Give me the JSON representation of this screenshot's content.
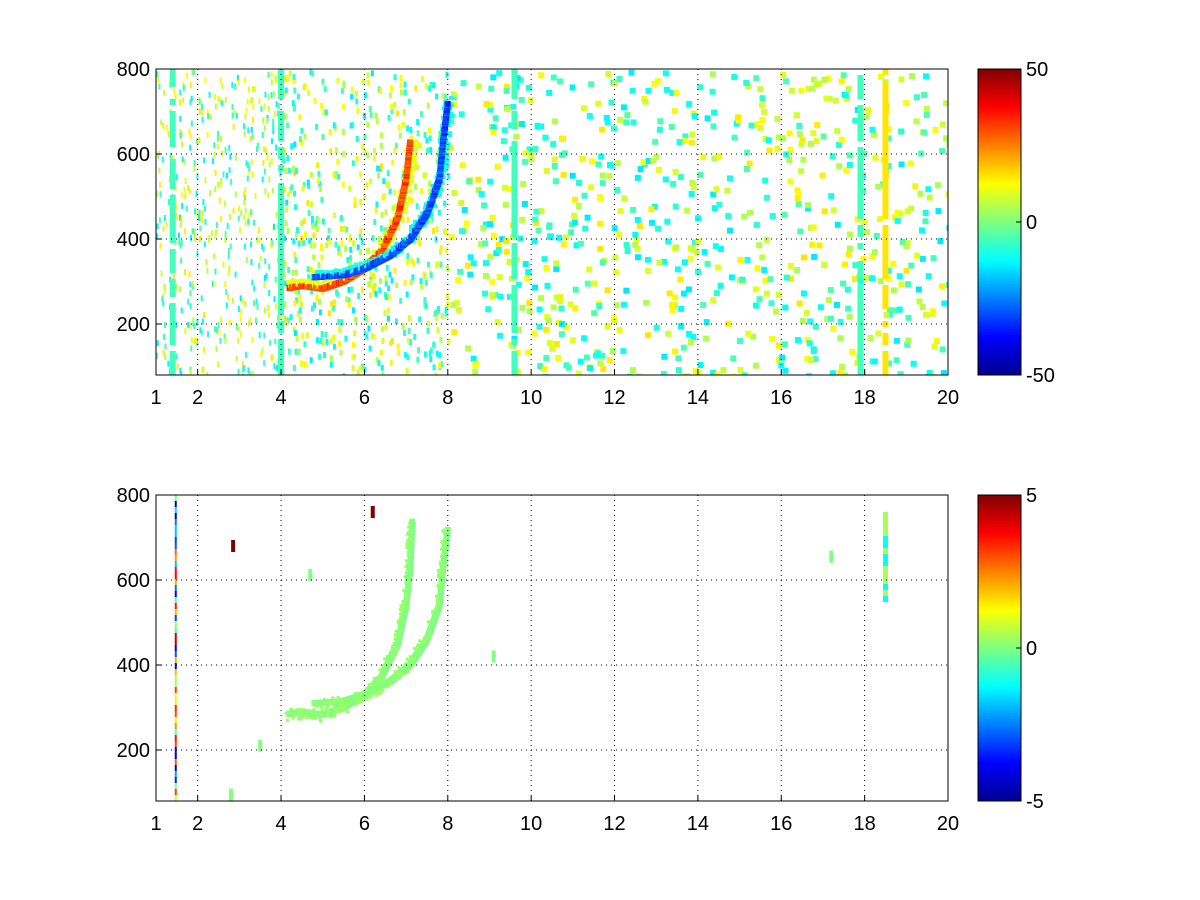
{
  "chart_data": [
    {
      "type": "heatmap",
      "title": "",
      "xlabel": "",
      "ylabel": "",
      "xlim": [
        1,
        20
      ],
      "ylim": [
        80,
        800
      ],
      "x_ticks": [
        "1",
        "2",
        "4",
        "6",
        "8",
        "10",
        "12",
        "14",
        "16",
        "18",
        "20"
      ],
      "y_ticks": [
        "200",
        "400",
        "600",
        "800"
      ],
      "grid": true,
      "colormap": "jet",
      "color_range": [
        -50,
        50
      ],
      "colorbar_ticks": [
        "50",
        "0",
        "-50"
      ],
      "ridges": [
        {
          "sign": "positive",
          "points": [
            [
              4.2,
              285
            ],
            [
              4.5,
              290
            ],
            [
              5.0,
              283
            ],
            [
              5.5,
              300
            ],
            [
              6.0,
              330
            ],
            [
              6.4,
              370
            ],
            [
              6.8,
              450
            ],
            [
              7.0,
              540
            ],
            [
              7.1,
              630
            ]
          ]
        },
        {
          "sign": "negative",
          "points": [
            [
              4.8,
              310
            ],
            [
              5.5,
              315
            ],
            [
              6.0,
              330
            ],
            [
              6.6,
              360
            ],
            [
              7.1,
              400
            ],
            [
              7.5,
              460
            ],
            [
              7.8,
              540
            ],
            [
              7.9,
              640
            ],
            [
              8.0,
              720
            ]
          ]
        }
      ],
      "vertical_bands": [
        {
          "x": 1.4,
          "sign": "negative",
          "y_range": [
            80,
            800
          ]
        },
        {
          "x": 4.0,
          "sign": "negative",
          "y_range": [
            80,
            800
          ]
        },
        {
          "x": 9.6,
          "sign": "negative",
          "y_range": [
            80,
            800
          ]
        },
        {
          "x": 17.9,
          "sign": "negative",
          "y_range": [
            80,
            800
          ]
        },
        {
          "x": 18.5,
          "sign": "positive",
          "y_range": [
            80,
            800
          ]
        }
      ]
    },
    {
      "type": "heatmap",
      "title": "",
      "xlabel": "",
      "ylabel": "",
      "xlim": [
        1,
        20
      ],
      "ylim": [
        80,
        800
      ],
      "x_ticks": [
        "1",
        "2",
        "4",
        "6",
        "8",
        "10",
        "12",
        "14",
        "16",
        "18",
        "20"
      ],
      "y_ticks": [
        "200",
        "400",
        "600",
        "800"
      ],
      "grid": true,
      "colormap": "jet",
      "color_range": [
        -5,
        5
      ],
      "colorbar_ticks": [
        "5",
        "0",
        "-5"
      ],
      "ridges": [
        {
          "sign": "zero",
          "points": [
            [
              4.2,
              285
            ],
            [
              4.5,
              290
            ],
            [
              5.0,
              283
            ],
            [
              5.5,
              300
            ],
            [
              6.0,
              330
            ],
            [
              6.4,
              370
            ],
            [
              6.8,
              450
            ],
            [
              7.0,
              540
            ],
            [
              7.1,
              630
            ],
            [
              7.15,
              740
            ]
          ]
        },
        {
          "sign": "zero",
          "points": [
            [
              4.8,
              310
            ],
            [
              5.5,
              315
            ],
            [
              6.0,
              330
            ],
            [
              6.6,
              360
            ],
            [
              7.1,
              400
            ],
            [
              7.5,
              460
            ],
            [
              7.8,
              540
            ],
            [
              7.9,
              640
            ],
            [
              8.0,
              720
            ]
          ]
        }
      ],
      "vertical_bands": [
        {
          "x": 1.45,
          "sign": "mixed",
          "y_range": [
            80,
            800
          ]
        },
        {
          "x": 18.5,
          "sign": "zero",
          "y_range": [
            560,
            760
          ]
        }
      ],
      "spots": [
        {
          "x": 2.85,
          "y": 680,
          "value": 5
        },
        {
          "x": 4.7,
          "y": 612,
          "value": 0
        },
        {
          "x": 6.2,
          "y": 760,
          "value": 5
        },
        {
          "x": 9.1,
          "y": 420,
          "value": 0
        },
        {
          "x": 17.2,
          "y": 655,
          "value": 0
        },
        {
          "x": 2.8,
          "y": 95,
          "value": 0
        },
        {
          "x": 3.5,
          "y": 210,
          "value": 0
        }
      ]
    }
  ]
}
